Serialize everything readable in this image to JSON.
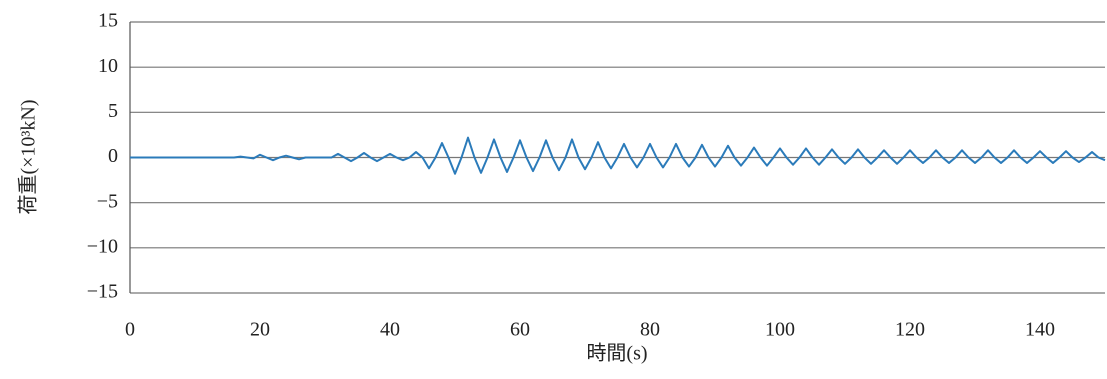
{
  "chart_data": {
    "type": "line",
    "x_label": "時間(s)",
    "y_label": "荷重(×10³kN)",
    "x": [
      0,
      1,
      2,
      3,
      4,
      5,
      6,
      7,
      8,
      9,
      10,
      11,
      12,
      13,
      14,
      15,
      16,
      17,
      18,
      19,
      20,
      21,
      22,
      23,
      24,
      25,
      26,
      27,
      28,
      29,
      30,
      31,
      32,
      33,
      34,
      35,
      36,
      37,
      38,
      39,
      40,
      41,
      42,
      43,
      44,
      45,
      46,
      47,
      48,
      49,
      50,
      51,
      52,
      53,
      54,
      55,
      56,
      57,
      58,
      59,
      60,
      61,
      62,
      63,
      64,
      65,
      66,
      67,
      68,
      69,
      70,
      71,
      72,
      73,
      74,
      75,
      76,
      77,
      78,
      79,
      80,
      81,
      82,
      83,
      84,
      85,
      86,
      87,
      88,
      89,
      90,
      91,
      92,
      93,
      94,
      95,
      96,
      97,
      98,
      99,
      100,
      101,
      102,
      103,
      104,
      105,
      106,
      107,
      108,
      109,
      110,
      111,
      112,
      113,
      114,
      115,
      116,
      117,
      118,
      119,
      120,
      121,
      122,
      123,
      124,
      125,
      126,
      127,
      128,
      129,
      130,
      131,
      132,
      133,
      134,
      135,
      136,
      137,
      138,
      139,
      140,
      141,
      142,
      143,
      144,
      145,
      146,
      147,
      148,
      149,
      150
    ],
    "series": [
      {
        "color": "#2b7bba",
        "values": [
          0,
          0,
          0,
          0,
          0,
          0,
          0,
          0,
          0,
          0,
          0,
          0,
          0,
          0,
          0,
          0,
          0,
          0.1,
          0,
          -0.1,
          0.3,
          0,
          -0.3,
          0,
          0.2,
          0,
          -0.2,
          0,
          0,
          0,
          0,
          0,
          0.4,
          0,
          -0.4,
          0,
          0.5,
          0,
          -0.4,
          0,
          0.4,
          0,
          -0.3,
          0,
          0.6,
          0,
          -1.2,
          0,
          1.6,
          0,
          -1.8,
          0,
          2.2,
          0,
          -1.7,
          0,
          2.0,
          0,
          -1.6,
          0,
          1.9,
          0,
          -1.5,
          0,
          1.9,
          0,
          -1.4,
          0,
          2.0,
          0,
          -1.3,
          0,
          1.7,
          0,
          -1.2,
          0,
          1.5,
          0,
          -1.1,
          0,
          1.5,
          0,
          -1.1,
          0,
          1.5,
          0,
          -1.0,
          0,
          1.4,
          0,
          -1.0,
          0,
          1.3,
          0,
          -0.9,
          0,
          1.1,
          0,
          -0.9,
          0,
          1.0,
          0,
          -0.8,
          0,
          1.0,
          0,
          -0.8,
          0,
          0.9,
          0,
          -0.7,
          0,
          0.9,
          0,
          -0.7,
          0,
          0.8,
          0,
          -0.7,
          0,
          0.8,
          0,
          -0.6,
          0,
          0.8,
          0,
          -0.6,
          0,
          0.8,
          0,
          -0.6,
          0,
          0.8,
          0,
          -0.6,
          0,
          0.8,
          0,
          -0.6,
          0,
          0.7,
          0,
          -0.6,
          0,
          0.7,
          0,
          -0.5,
          0,
          0.6,
          0,
          -0.3
        ]
      }
    ],
    "xlim": [
      0,
      150
    ],
    "xticks": [
      0,
      20,
      40,
      60,
      80,
      100,
      120,
      140
    ],
    "ylim": [
      -15,
      15
    ],
    "yticks": [
      {
        "value": -15,
        "label": "−15"
      },
      {
        "value": -10,
        "label": "−10"
      },
      {
        "value": -5,
        "label": "−5"
      },
      0,
      5,
      10,
      15
    ],
    "grid": true
  }
}
